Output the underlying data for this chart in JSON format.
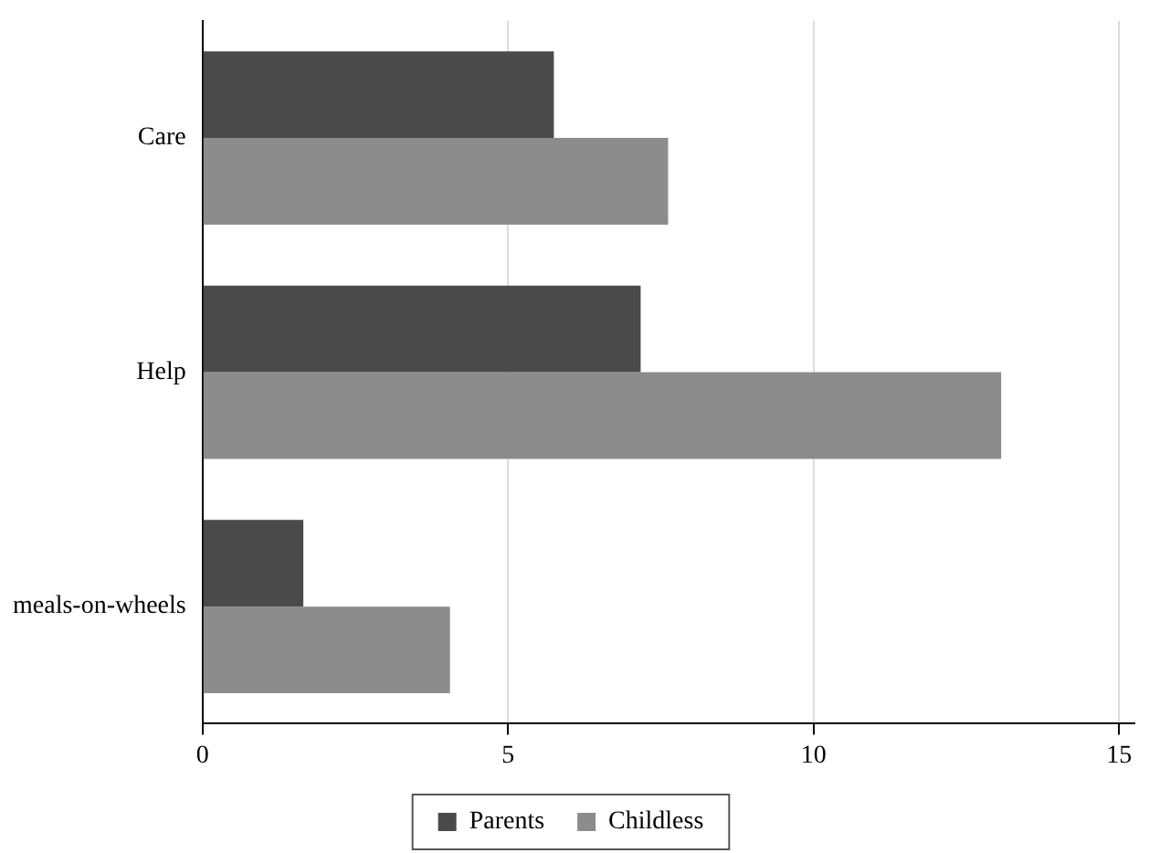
{
  "chart_data": {
    "type": "bar",
    "orientation": "horizontal",
    "categories": [
      "Care",
      "Help",
      "meals-on-wheels"
    ],
    "series": [
      {
        "name": "Parents",
        "color": "#4a4a4a",
        "values": [
          5.75,
          7.17,
          1.65
        ]
      },
      {
        "name": "Childless",
        "color": "#8c8c8c",
        "values": [
          7.62,
          13.07,
          4.05
        ]
      }
    ],
    "xlim": [
      0,
      15.25
    ],
    "xticks": [
      0,
      5,
      10,
      15
    ],
    "grid": "x",
    "legend": "bottom"
  }
}
